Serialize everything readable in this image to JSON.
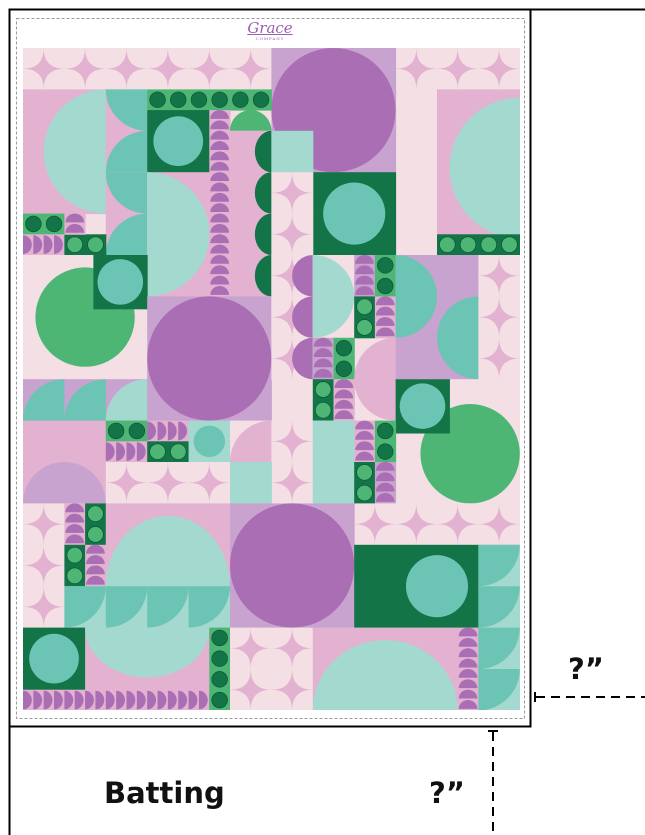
{
  "labels": {
    "batting": "Batting",
    "dimension_bottom": "?”",
    "dimension_right": "?”"
  },
  "logo": {
    "main": "Grace",
    "sub": "COMPANY"
  },
  "colors": {
    "pink_bg": "#f3dfe4",
    "pink_mid": "#e2b2d0",
    "lavender": "#c9a3cf",
    "purple": "#a96eb3",
    "teal": "#6cc4b4",
    "teal_light": "#a4d9d0",
    "green_dark": "#137448",
    "green_mid": "#4db674",
    "green_circle": "#3aa868"
  }
}
